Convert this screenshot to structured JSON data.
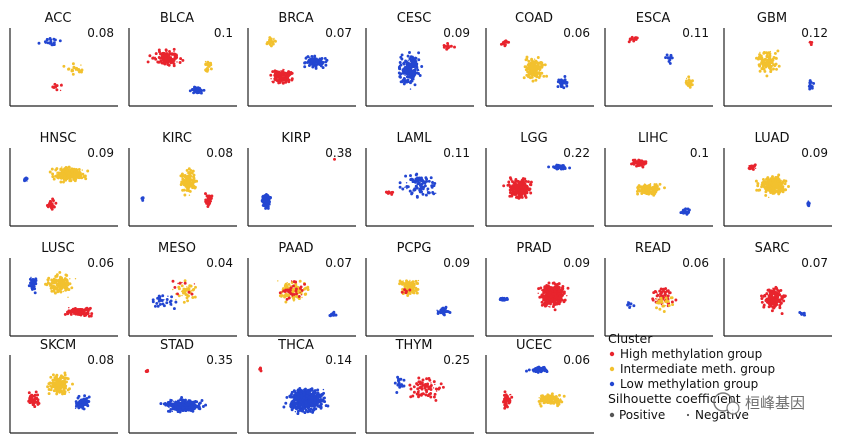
{
  "chart_data": {
    "type": "scatter",
    "grid": false,
    "colors": {
      "high": "#e8242d",
      "intermediate": "#f2c12e",
      "low": "#2346d1",
      "axis": "#222222"
    },
    "panels": [
      {
        "title": "ACC",
        "score": "0.08",
        "groups": [
          "low",
          "intermediate",
          "high"
        ],
        "style": "acc"
      },
      {
        "title": "BLCA",
        "score": "0.1",
        "groups": [
          "high",
          "intermediate",
          "low"
        ],
        "style": "blca"
      },
      {
        "title": "BRCA",
        "score": "0.07",
        "groups": [
          "intermediate",
          "low",
          "high"
        ],
        "style": "brca"
      },
      {
        "title": "CESC",
        "score": "0.09",
        "groups": [
          "low",
          "high"
        ],
        "style": "cesc"
      },
      {
        "title": "COAD",
        "score": "0.06",
        "groups": [
          "high",
          "intermediate",
          "low"
        ],
        "style": "coad"
      },
      {
        "title": "ESCA",
        "score": "0.11",
        "groups": [
          "high",
          "low",
          "intermediate"
        ],
        "style": "esca"
      },
      {
        "title": "GBM",
        "score": "0.12",
        "groups": [
          "intermediate",
          "high",
          "low"
        ],
        "style": "gbm"
      },
      {
        "title": "HNSC",
        "score": "0.09",
        "groups": [
          "intermediate",
          "high",
          "low"
        ],
        "style": "hnsc"
      },
      {
        "title": "KIRC",
        "score": "0.08",
        "groups": [
          "intermediate",
          "high",
          "low"
        ],
        "style": "kirc"
      },
      {
        "title": "KIRP",
        "score": "0.38",
        "groups": [
          "low",
          "high"
        ],
        "style": "kirp"
      },
      {
        "title": "LAML",
        "score": "0.11",
        "groups": [
          "low",
          "high"
        ],
        "style": "laml"
      },
      {
        "title": "LGG",
        "score": "0.22",
        "groups": [
          "high",
          "low"
        ],
        "style": "lgg"
      },
      {
        "title": "LIHC",
        "score": "0.1",
        "groups": [
          "high",
          "intermediate",
          "low"
        ],
        "style": "lihc"
      },
      {
        "title": "LUAD",
        "score": "0.09",
        "groups": [
          "intermediate",
          "high",
          "low"
        ],
        "style": "luad"
      },
      {
        "title": "LUSC",
        "score": "0.06",
        "groups": [
          "intermediate",
          "high",
          "low"
        ],
        "style": "lusc"
      },
      {
        "title": "MESO",
        "score": "0.04",
        "groups": [
          "intermediate",
          "low",
          "high"
        ],
        "style": "meso"
      },
      {
        "title": "PAAD",
        "score": "0.07",
        "groups": [
          "intermediate",
          "high",
          "low"
        ],
        "style": "paad"
      },
      {
        "title": "PCPG",
        "score": "0.09",
        "groups": [
          "intermediate",
          "high",
          "low"
        ],
        "style": "pcpg"
      },
      {
        "title": "PRAD",
        "score": "0.09",
        "groups": [
          "high",
          "low"
        ],
        "style": "prad"
      },
      {
        "title": "READ",
        "score": "0.06",
        "groups": [
          "high",
          "intermediate",
          "low"
        ],
        "style": "read"
      },
      {
        "title": "SARC",
        "score": "0.07",
        "groups": [
          "high",
          "low"
        ],
        "style": "sarc"
      },
      {
        "title": "SKCM",
        "score": "0.08",
        "groups": [
          "intermediate",
          "high",
          "low"
        ],
        "style": "skcm"
      },
      {
        "title": "STAD",
        "score": "0.35",
        "groups": [
          "low",
          "high"
        ],
        "style": "stad"
      },
      {
        "title": "THCA",
        "score": "0.14",
        "groups": [
          "low",
          "high"
        ],
        "style": "thca"
      },
      {
        "title": "THYM",
        "score": "0.25",
        "groups": [
          "high",
          "low"
        ],
        "style": "thym"
      },
      {
        "title": "UCEC",
        "score": "0.06",
        "groups": [
          "low",
          "intermediate",
          "high"
        ],
        "style": "ucec"
      }
    ],
    "legend": {
      "placement": "bottom-right",
      "cluster_title": "Cluster",
      "cluster_items": [
        {
          "label": "High methylation group",
          "key": "high"
        },
        {
          "label": "Intermediate meth. group",
          "key": "intermediate"
        },
        {
          "label": "Low methylation group",
          "key": "low"
        }
      ],
      "silhouette_title": "Silhouette coefficient",
      "silhouette_items": [
        {
          "label": "Positive",
          "marker": "large"
        },
        {
          "label": "Negative",
          "marker": "small"
        }
      ]
    }
  },
  "watermark": "桓峰基因"
}
